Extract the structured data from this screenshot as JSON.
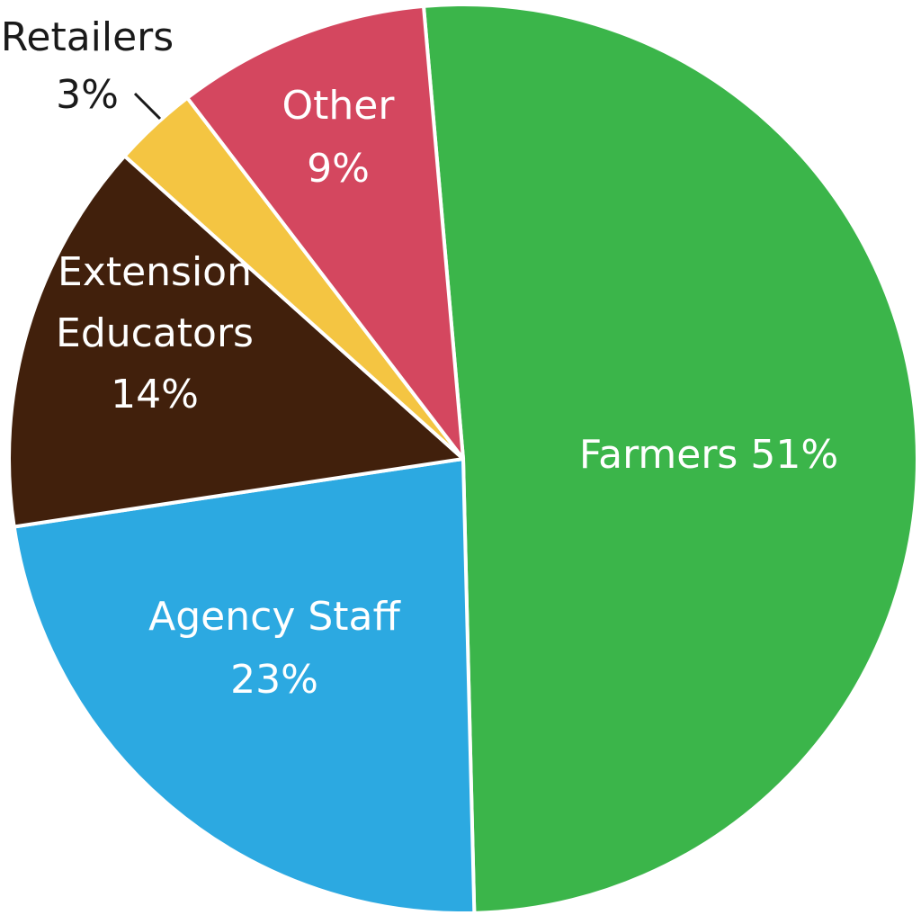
{
  "chart_data": {
    "type": "pie",
    "title": "",
    "slices": [
      {
        "name": "Farmers",
        "value": 51,
        "color": "#3bb54a",
        "label_lines": [
          "Farmers 51%"
        ]
      },
      {
        "name": "Agency Staff",
        "value": 23,
        "color": "#2ca9e1",
        "label_lines": [
          "Agency Staff",
          "23%"
        ]
      },
      {
        "name": "Extension Educators",
        "value": 14,
        "color": "#41200c",
        "label_lines": [
          "Extension",
          "Educators",
          "14%"
        ]
      },
      {
        "name": "Retailers",
        "value": 3,
        "color": "#f4c542",
        "label_lines": [
          "Retailers",
          "3%"
        ],
        "label_outside": true
      },
      {
        "name": "Other",
        "value": 9,
        "color": "#d4475f",
        "label_lines": [
          "Other",
          "9%"
        ]
      }
    ],
    "start_angle_direction": "clockwise-from-top",
    "legend": "none",
    "grid": false
  }
}
